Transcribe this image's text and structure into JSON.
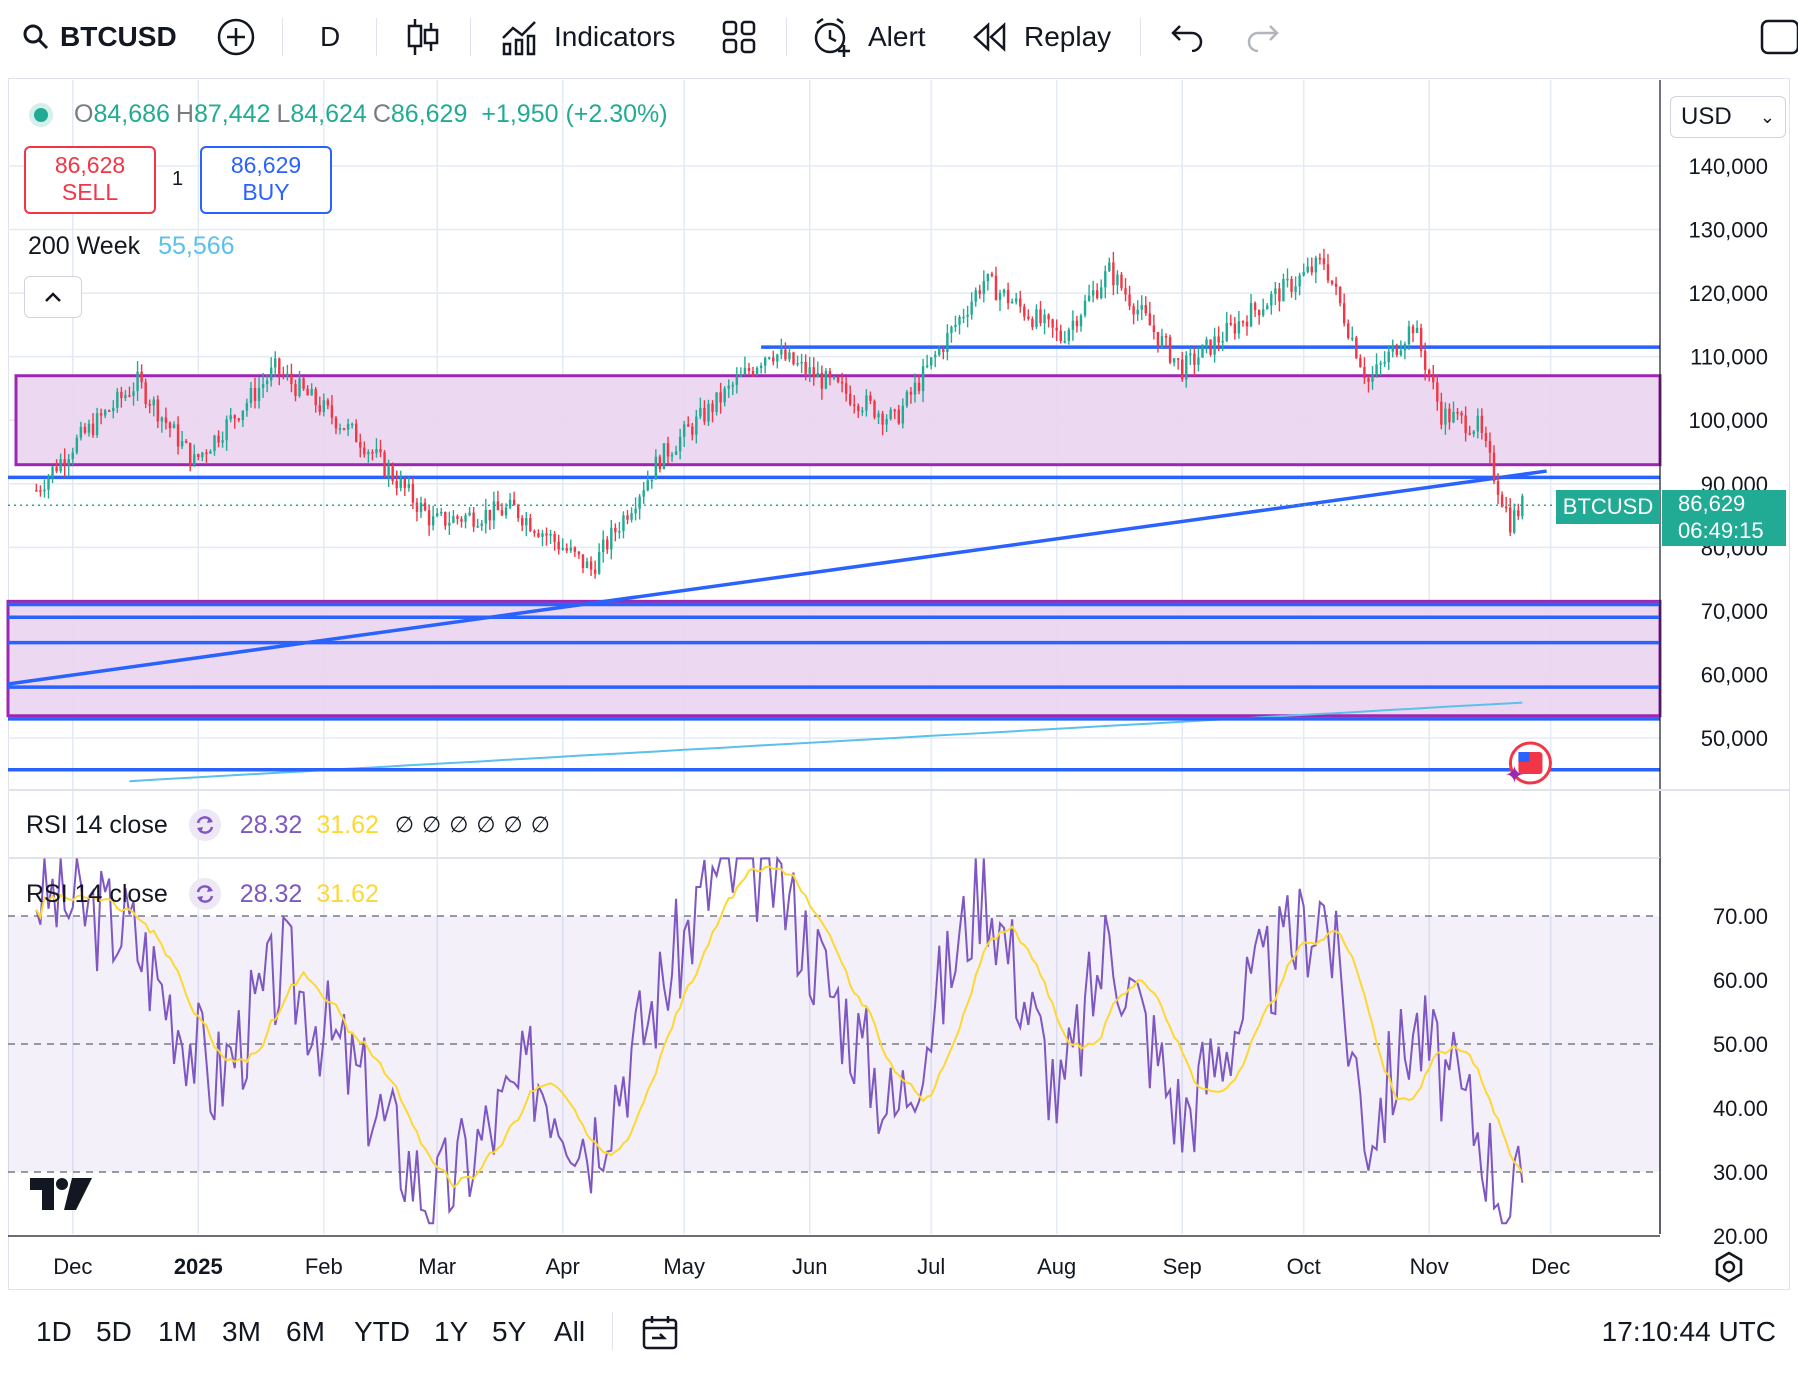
{
  "toolbar": {
    "symbol": "BTCUSD",
    "interval": "D",
    "indicators_label": "Indicators",
    "alert_label": "Alert",
    "replay_label": "Replay"
  },
  "legend": {
    "open_key": "O",
    "open": "84,686",
    "high_key": "H",
    "high": "87,442",
    "low_key": "L",
    "low": "84,624",
    "close_key": "C",
    "close": "86,629",
    "change": "+1,950 (+2.30%)"
  },
  "trade": {
    "sell_price": "86,628",
    "sell_label": "SELL",
    "quantity": "1",
    "buy_price": "86,629",
    "buy_label": "BUY"
  },
  "ma": {
    "label": "200 Week",
    "value": "55,566"
  },
  "currency": "USD",
  "price_axis": {
    "ticks": [
      "140,000",
      "130,000",
      "120,000",
      "110,000",
      "100,000",
      "90,000",
      "80,000",
      "70,000",
      "60,000",
      "50,000"
    ]
  },
  "last_price": {
    "symbol": "BTCUSD",
    "price": "86,629",
    "countdown": "06:49:15"
  },
  "rsi": {
    "label": "RSI 14 close",
    "value": "28.32",
    "ma_value": "31.62",
    "ticks": [
      "70.00",
      "60.00",
      "50.00",
      "40.00",
      "30.00",
      "20.00"
    ]
  },
  "time_axis": [
    "Dec",
    "2025",
    "Feb",
    "Mar",
    "Apr",
    "May",
    "Jun",
    "Jul",
    "Aug",
    "Sep",
    "Oct",
    "Nov",
    "Dec"
  ],
  "ranges": [
    "1D",
    "5D",
    "1M",
    "3M",
    "6M",
    "YTD",
    "1Y",
    "5Y",
    "All"
  ],
  "clock": "17:10:44 UTC",
  "colors": {
    "up": "#22ab94",
    "down": "#f23645",
    "trend": "#2962ff",
    "zone_fill": "#ead5f0",
    "zone_border": "#9c27b0",
    "rsi_line": "#7e57c2",
    "rsi_ma": "#fdd835",
    "ma200": "#5bc0eb"
  },
  "chart_data": {
    "type": "candlestick",
    "price_series": [
      {
        "date": "2024-11-22",
        "close": 89000
      },
      {
        "date": "2024-12-01",
        "close": 96000
      },
      {
        "date": "2024-12-17",
        "close": 106000
      },
      {
        "date": "2024-12-31",
        "close": 93500
      },
      {
        "date": "2025-01-20",
        "close": 108000
      },
      {
        "date": "2025-02-10",
        "close": 97000
      },
      {
        "date": "2025-02-28",
        "close": 84000
      },
      {
        "date": "2025-03-20",
        "close": 86000
      },
      {
        "date": "2025-04-08",
        "close": 76500
      },
      {
        "date": "2025-04-25",
        "close": 94000
      },
      {
        "date": "2025-05-22",
        "close": 111000
      },
      {
        "date": "2025-06-22",
        "close": 100000
      },
      {
        "date": "2025-07-14",
        "close": 122000
      },
      {
        "date": "2025-08-02",
        "close": 113000
      },
      {
        "date": "2025-08-14",
        "close": 123500
      },
      {
        "date": "2025-09-01",
        "close": 108000
      },
      {
        "date": "2025-09-18",
        "close": 117000
      },
      {
        "date": "2025-10-06",
        "close": 125000
      },
      {
        "date": "2025-10-17",
        "close": 106000
      },
      {
        "date": "2025-10-28",
        "close": 115000
      },
      {
        "date": "2025-11-04",
        "close": 101000
      },
      {
        "date": "2025-11-13",
        "close": 99000
      },
      {
        "date": "2025-11-21",
        "close": 84000
      },
      {
        "date": "2025-11-24",
        "close": 86629
      }
    ],
    "rsi_series": [
      {
        "date": "2024-11-22",
        "value": 74
      },
      {
        "date": "2024-12-15",
        "value": 68
      },
      {
        "date": "2025-01-05",
        "value": 44
      },
      {
        "date": "2025-01-22",
        "value": 62
      },
      {
        "date": "2025-02-10",
        "value": 44
      },
      {
        "date": "2025-02-28",
        "value": 25
      },
      {
        "date": "2025-03-25",
        "value": 46
      },
      {
        "date": "2025-04-08",
        "value": 35
      },
      {
        "date": "2025-05-08",
        "value": 76
      },
      {
        "date": "2025-05-22",
        "value": 78
      },
      {
        "date": "2025-06-22",
        "value": 39
      },
      {
        "date": "2025-07-14",
        "value": 76
      },
      {
        "date": "2025-08-02",
        "value": 41
      },
      {
        "date": "2025-08-14",
        "value": 67
      },
      {
        "date": "2025-09-01",
        "value": 38
      },
      {
        "date": "2025-09-18",
        "value": 58
      },
      {
        "date": "2025-10-06",
        "value": 72
      },
      {
        "date": "2025-10-17",
        "value": 36
      },
      {
        "date": "2025-10-28",
        "value": 53
      },
      {
        "date": "2025-11-13",
        "value": 37
      },
      {
        "date": "2025-11-21",
        "value": 24
      },
      {
        "date": "2025-11-24",
        "value": 28.32
      }
    ],
    "levels": [
      111500,
      91000,
      71000,
      69000,
      65000,
      58000,
      53000,
      45000
    ],
    "zones": [
      [
        93000,
        107000
      ],
      [
        53500,
        71500
      ]
    ],
    "trendline": [
      {
        "date": "2024-11-15",
        "value": 58500
      },
      {
        "date": "2025-11-30",
        "value": 92000
      }
    ],
    "y_range": [
      43000,
      150000
    ],
    "rsi_range": [
      20,
      80
    ]
  }
}
